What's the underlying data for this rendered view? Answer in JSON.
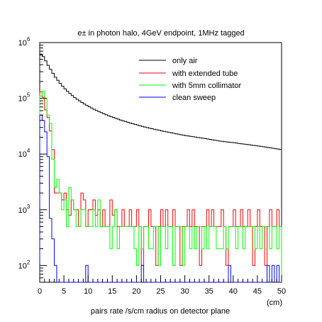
{
  "chart_data": {
    "type": "line",
    "style": "step-histogram",
    "title": "e± in photon halo, 4GeV endpoint, 1MHz tagged",
    "xlabel": "pairs rate /s/cm radius on detector plane",
    "x_unit": "(cm)",
    "xlim": [
      0,
      50
    ],
    "ylim": [
      50,
      1000000
    ],
    "y_scale": "log",
    "x_ticks": [
      "0",
      "5",
      "10",
      "15",
      "20",
      "25",
      "30",
      "35",
      "40",
      "45",
      "50"
    ],
    "y_ticks": [
      {
        "base": "10",
        "exp": "2",
        "value": 100
      },
      {
        "base": "10",
        "exp": "3",
        "value": 1000
      },
      {
        "base": "10",
        "exp": "4",
        "value": 10000
      },
      {
        "base": "10",
        "exp": "5",
        "value": 100000
      },
      {
        "base": "10",
        "exp": "6",
        "value": 1000000
      }
    ],
    "legend_position": "top-right",
    "bin_width": 0.5,
    "series": [
      {
        "name": "only air",
        "color": "#000000",
        "values": [
          620000,
          560000,
          470000,
          390000,
          330000,
          280000,
          240000,
          210000,
          185000,
          165000,
          148000,
          134000,
          122000,
          112000,
          103000,
          96000,
          90000,
          84000,
          79000,
          74500,
          70500,
          67000,
          63500,
          60500,
          57800,
          55300,
          53000,
          50800,
          48800,
          47000,
          45300,
          43700,
          42200,
          40800,
          39500,
          38300,
          37100,
          36000,
          35000,
          34000,
          33100,
          32200,
          31300,
          30500,
          29800,
          29100,
          28400,
          27800,
          27200,
          26600,
          26000,
          25500,
          25000,
          24500,
          24000,
          23500,
          23000,
          22600,
          22200,
          21800,
          21400,
          21000,
          20700,
          20400,
          20100,
          19800,
          19500,
          19200,
          18900,
          18600,
          18300,
          18000,
          17700,
          17400,
          17100,
          16900,
          16700,
          16500,
          16300,
          16100,
          15900,
          15700,
          15500,
          15300,
          15100,
          14900,
          14700,
          14500,
          14300,
          14100,
          13900,
          13700,
          13500,
          13300,
          13100,
          12900,
          12700,
          12500,
          12300,
          12100
        ]
      },
      {
        "name": "with extended tube",
        "color": "#ff0000",
        "values": [
          130000,
          105000,
          62000,
          45000,
          26000,
          12000,
          2000,
          2000,
          2000,
          1500,
          2000,
          1000,
          800,
          1500,
          1000,
          1000,
          500,
          2000,
          1500,
          500,
          1000,
          1000,
          1500,
          800,
          1000,
          500,
          1000,
          500,
          500,
          1500,
          800,
          1000,
          500,
          500,
          1000,
          500,
          500,
          1000,
          500,
          500,
          1000,
          500,
          100,
          500,
          500,
          1000,
          500,
          500,
          100,
          500,
          1000,
          500,
          1000,
          500,
          500,
          1000,
          500,
          500,
          100,
          500,
          500,
          1000,
          500,
          1000,
          500,
          500,
          100,
          500,
          500,
          1000,
          500,
          1000,
          500,
          500,
          500,
          1000,
          500,
          100,
          500,
          500,
          1000,
          500,
          500,
          1000,
          500,
          500,
          1000,
          500,
          100,
          500,
          1000,
          500,
          500,
          100,
          500,
          1000,
          500,
          500,
          1000,
          500
        ]
      },
      {
        "name": "with 5mm collimator",
        "color": "#00ff00",
        "values": [
          110000,
          135000,
          100000,
          50000,
          35000,
          8000,
          2500,
          3500,
          2000,
          1000,
          1500,
          500,
          2500,
          1500,
          1000,
          500,
          500,
          1000,
          1000,
          500,
          500,
          500,
          1000,
          500,
          1500,
          500,
          500,
          500,
          500,
          200,
          500,
          1000,
          200,
          500,
          500,
          500,
          500,
          500,
          500,
          200,
          100,
          500,
          200,
          500,
          500,
          200,
          200,
          500,
          500,
          100,
          500,
          500,
          200,
          500,
          500,
          100,
          500,
          500,
          500,
          100,
          500,
          500,
          200,
          500,
          200,
          500,
          500,
          200,
          500,
          200,
          500,
          500,
          500,
          200,
          200,
          200,
          500,
          200,
          500,
          500,
          500,
          200,
          500,
          500,
          200,
          500,
          500,
          500,
          500,
          200,
          500,
          200,
          500,
          500,
          500,
          200,
          500,
          500,
          200,
          500
        ]
      },
      {
        "name": "clean sweep",
        "color": "#0000ff",
        "values": [
          50000,
          40000,
          25000,
          9000,
          700,
          300,
          100,
          0,
          0,
          0,
          0,
          0,
          0,
          0,
          0,
          0,
          0,
          0,
          0,
          100,
          0,
          0,
          0,
          0,
          0,
          0,
          0,
          0,
          0,
          0,
          0,
          0,
          0,
          0,
          0,
          0,
          0,
          0,
          0,
          0,
          0,
          0,
          100,
          0,
          0,
          0,
          0,
          0,
          0,
          0,
          0,
          0,
          0,
          0,
          0,
          0,
          0,
          0,
          0,
          0,
          0,
          0,
          0,
          0,
          0,
          0,
          0,
          0,
          0,
          0,
          0,
          0,
          0,
          0,
          0,
          0,
          0,
          0,
          100,
          0,
          0,
          0,
          0,
          0,
          0,
          0,
          0,
          0,
          0,
          0,
          0,
          0,
          0,
          0,
          100,
          0,
          100,
          0,
          100,
          0
        ]
      }
    ]
  }
}
